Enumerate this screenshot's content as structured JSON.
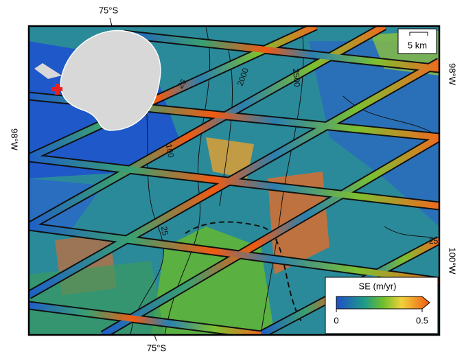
{
  "map": {
    "lat_labels": [
      "75°S",
      "75°S"
    ],
    "lon_labels": [
      "98°W",
      "98°W",
      "100°W"
    ],
    "scale_bar": "5 km",
    "contour_labels": [
      "25",
      "2000",
      "100",
      "25",
      "25",
      "2500"
    ],
    "colorbar": {
      "title": "SE (m/yr)",
      "ticks": [
        0,
        0.5
      ]
    }
  }
}
